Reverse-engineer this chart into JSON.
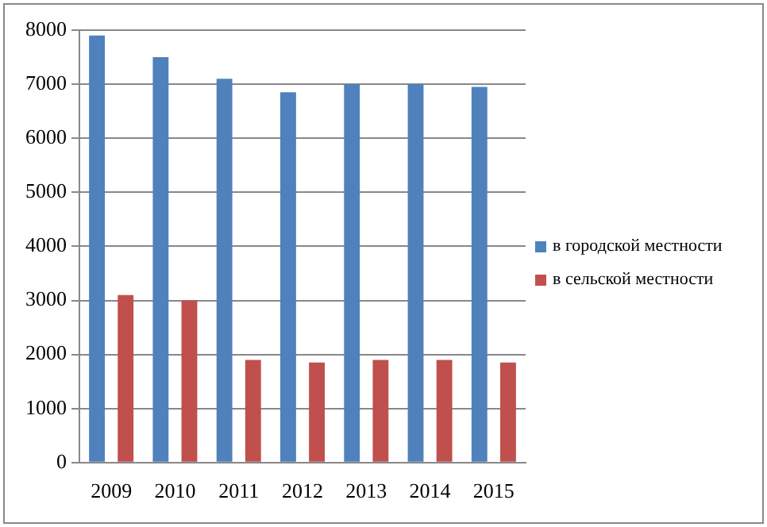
{
  "chart_data": {
    "type": "bar",
    "categories": [
      "2009",
      "2010",
      "2011",
      "2012",
      "2013",
      "2014",
      "2015"
    ],
    "series": [
      {
        "name": "в городской местности",
        "color": "#4f81bd",
        "values": [
          7900,
          7500,
          7100,
          6850,
          7000,
          7000,
          6950
        ]
      },
      {
        "name": "в сельской местности",
        "color": "#c0504d",
        "values": [
          3100,
          3000,
          1900,
          1850,
          1900,
          1900,
          1850
        ]
      }
    ],
    "ylim": [
      0,
      8000
    ],
    "yticks": [
      0,
      1000,
      2000,
      3000,
      4000,
      5000,
      6000,
      7000,
      8000
    ],
    "grid": "y",
    "legend": "right"
  }
}
